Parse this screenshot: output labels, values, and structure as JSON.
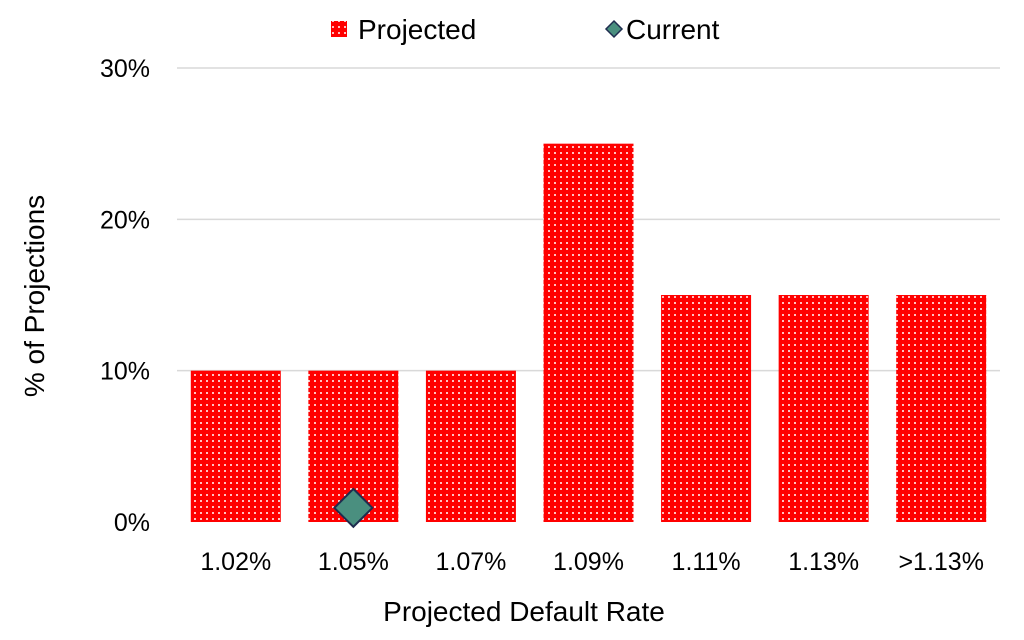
{
  "chart_data": {
    "type": "bar",
    "categories": [
      "1.02%",
      "1.05%",
      "1.07%",
      "1.09%",
      "1.11%",
      "1.13%",
      ">1.13%"
    ],
    "series": [
      {
        "name": "Projected",
        "type": "bar",
        "values": [
          10,
          10,
          10,
          25,
          15,
          15,
          15
        ],
        "color": "#ff0000",
        "pattern": "dotted"
      },
      {
        "name": "Current",
        "type": "marker",
        "marker": "diamond",
        "category": "1.05%",
        "value": 1,
        "color": "#4a8f7f",
        "stroke": "#1f2d4f"
      }
    ],
    "xlabel": "Projected Default Rate",
    "ylabel": "% of Projections",
    "ylim": [
      0,
      30
    ],
    "yticks": [
      {
        "value": 0,
        "label": "0%"
      },
      {
        "value": 10,
        "label": "10%"
      },
      {
        "value": 20,
        "label": "20%"
      },
      {
        "value": 30,
        "label": "30%"
      }
    ],
    "grid": true,
    "legend_position": "top-center"
  }
}
